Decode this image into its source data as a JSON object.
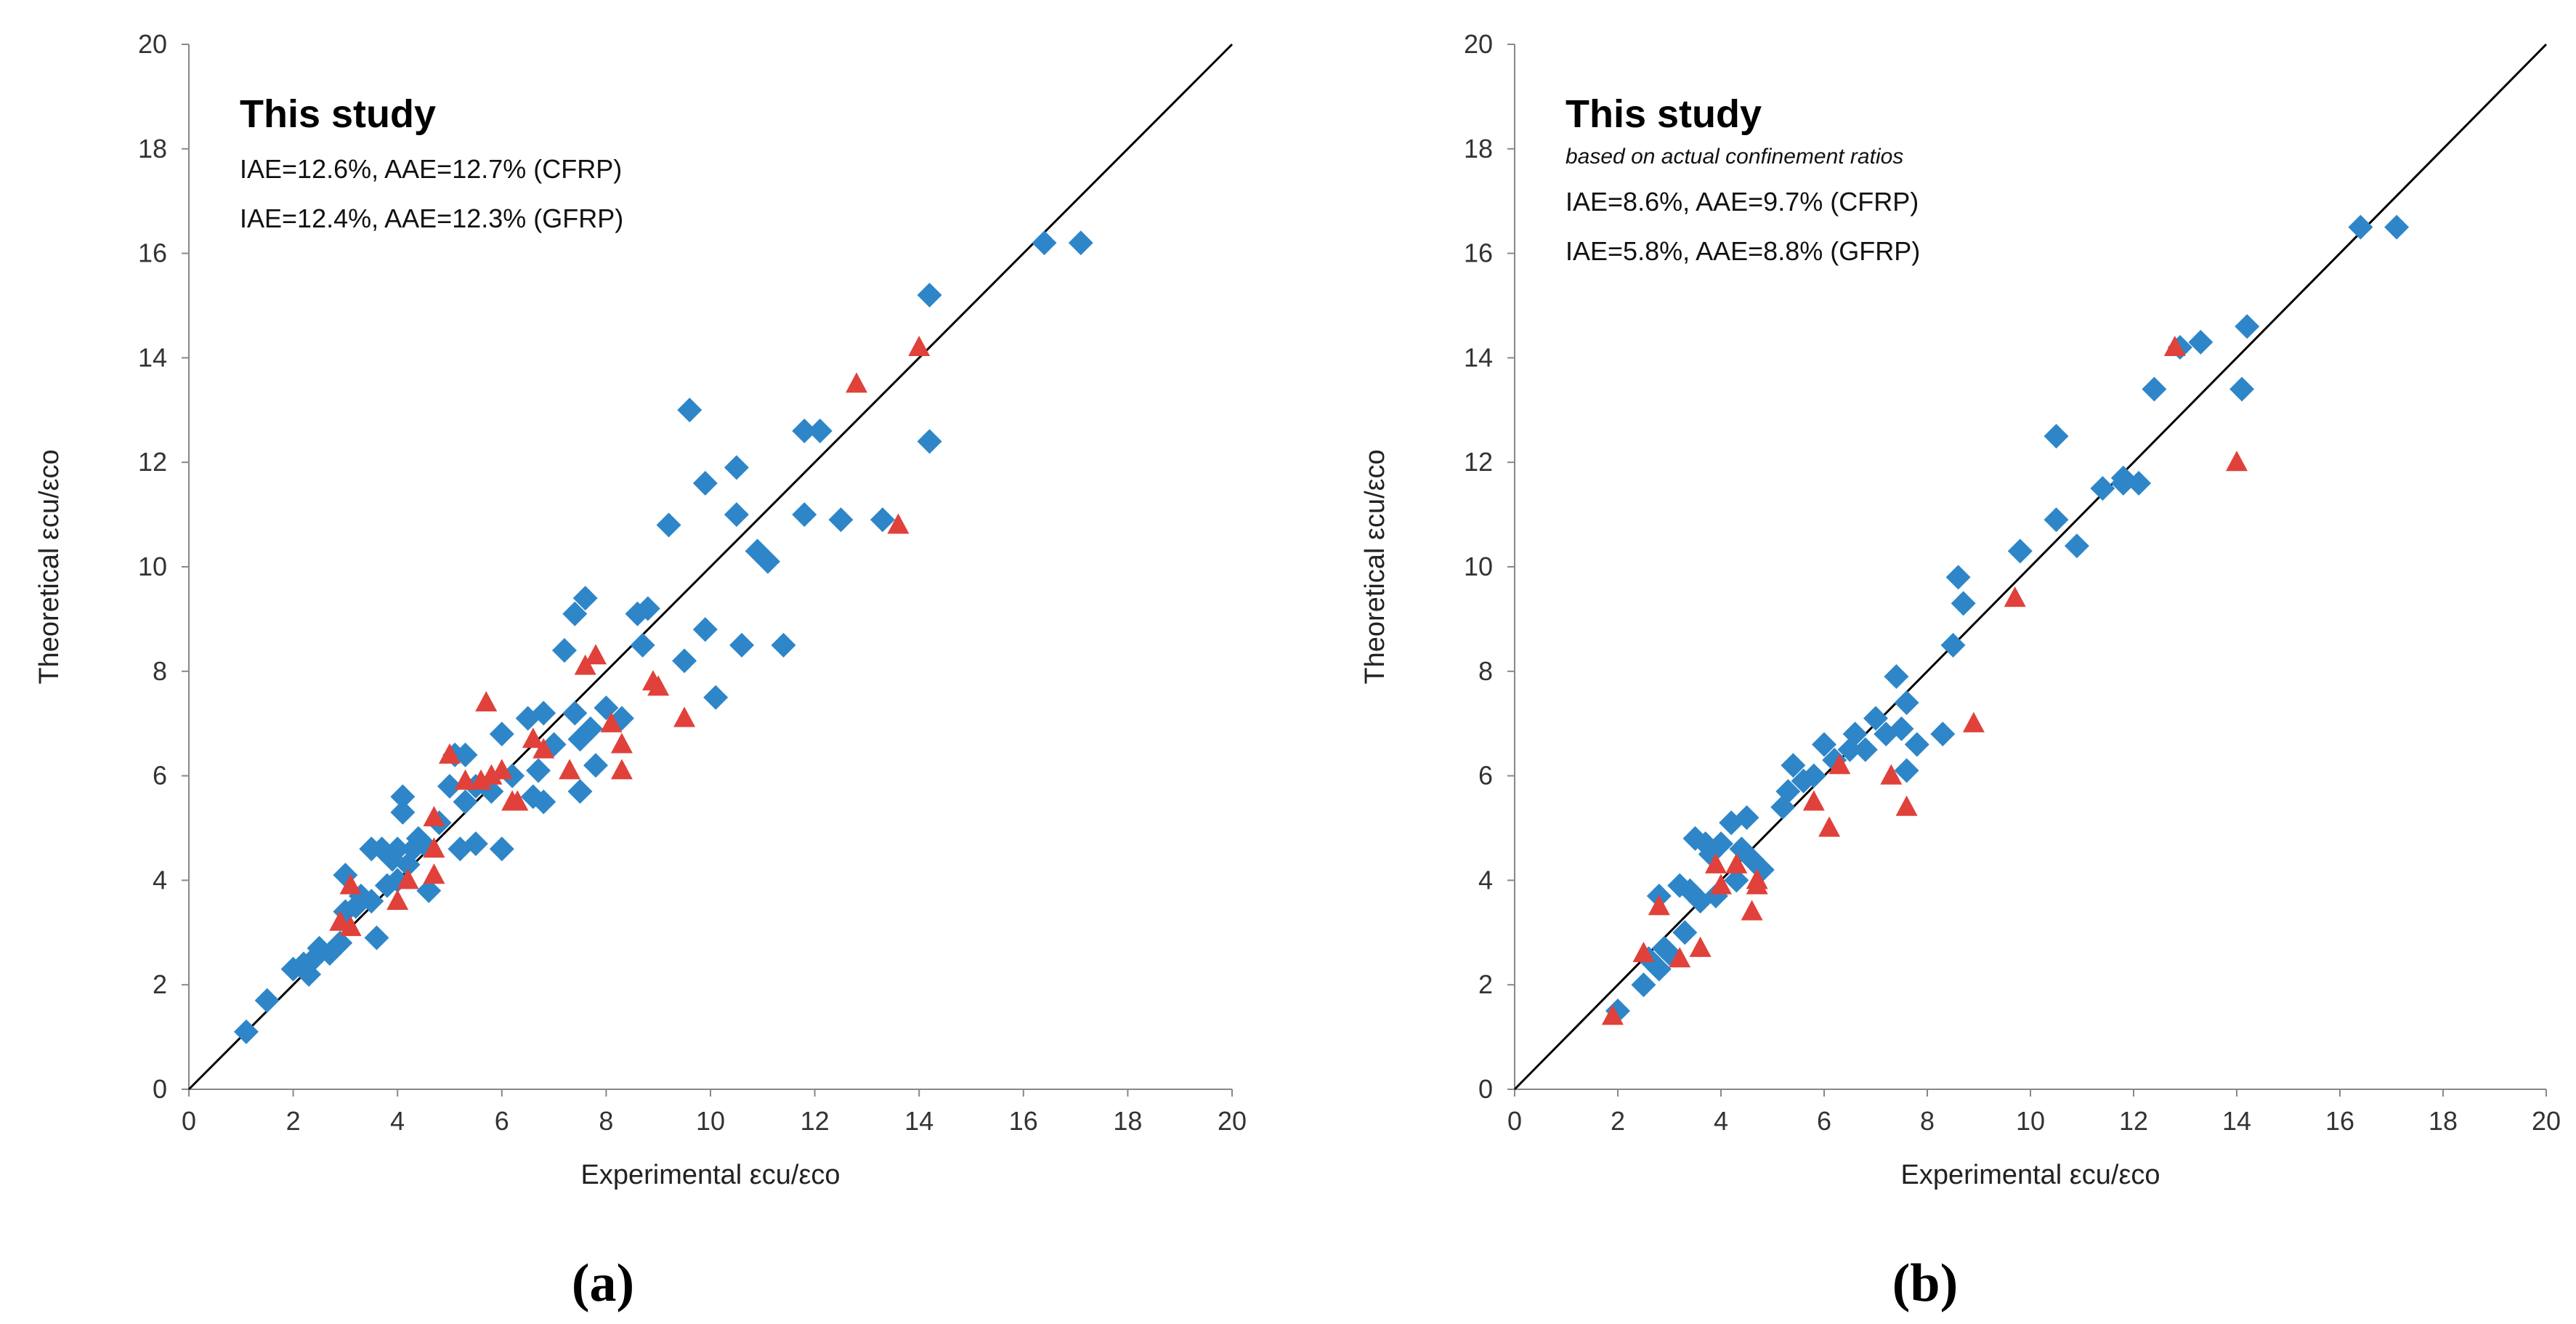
{
  "chart_data": [
    {
      "type": "scatter",
      "panel_label": "(a)",
      "xlabel": "Experimental  εcu/εco",
      "ylabel": "Theoretical  εcu/εco",
      "xlim": [
        0,
        20
      ],
      "ylim": [
        0,
        20
      ],
      "xticks": [
        0,
        2,
        4,
        6,
        8,
        10,
        12,
        14,
        16,
        18,
        20
      ],
      "yticks": [
        0,
        2,
        4,
        6,
        8,
        10,
        12,
        14,
        16,
        18,
        20
      ],
      "grid": false,
      "reference_line": "y = x",
      "annotation": {
        "title": "This study",
        "subtitle": "",
        "lines": [
          "IAE=12.6%, AAE=12.7% (CFRP)",
          "IAE=12.4%,  AAE=12.3% (GFRP)"
        ]
      },
      "series": [
        {
          "name": "CFRP",
          "marker": "diamond",
          "color": "#2E86C8",
          "points": [
            [
              1.1,
              1.1
            ],
            [
              1.5,
              1.7
            ],
            [
              2,
              2.3
            ],
            [
              2.2,
              2.4
            ],
            [
              2.4,
              2.5
            ],
            [
              2.5,
              2.7
            ],
            [
              2.3,
              2.2
            ],
            [
              2.7,
              2.6
            ],
            [
              2.9,
              2.8
            ],
            [
              3,
              3.4
            ],
            [
              3,
              4.1
            ],
            [
              3.2,
              3.5
            ],
            [
              3.3,
              3.7
            ],
            [
              3.5,
              3.6
            ],
            [
              3.5,
              4.6
            ],
            [
              3.6,
              2.9
            ],
            [
              3.7,
              4.6
            ],
            [
              3.8,
              3.9
            ],
            [
              3.9,
              4.4
            ],
            [
              4,
              4.6
            ],
            [
              4,
              4.0
            ],
            [
              4.1,
              5.3
            ],
            [
              4.1,
              5.6
            ],
            [
              4.2,
              4.3
            ],
            [
              4.3,
              4.6
            ],
            [
              4.4,
              4.8
            ],
            [
              4.5,
              4.7
            ],
            [
              4.6,
              3.8
            ],
            [
              4.8,
              5.1
            ],
            [
              5,
              5.8
            ],
            [
              5.1,
              6.4
            ],
            [
              5.2,
              4.6
            ],
            [
              5.3,
              6.4
            ],
            [
              5.3,
              5.5
            ],
            [
              5.5,
              4.7
            ],
            [
              5.5,
              5.8
            ],
            [
              5.8,
              5.7
            ],
            [
              6,
              4.6
            ],
            [
              6,
              6.8
            ],
            [
              6.2,
              6
            ],
            [
              6.5,
              7.1
            ],
            [
              6.6,
              5.6
            ],
            [
              6.7,
              6.1
            ],
            [
              6.8,
              7.2
            ],
            [
              6.8,
              5.5
            ],
            [
              7,
              6.6
            ],
            [
              7.2,
              8.4
            ],
            [
              7.4,
              9.1
            ],
            [
              7.4,
              7.2
            ],
            [
              7.5,
              6.7
            ],
            [
              7.5,
              5.7
            ],
            [
              7.6,
              9.4
            ],
            [
              7.7,
              6.9
            ],
            [
              7.8,
              6.2
            ],
            [
              8,
              7.3
            ],
            [
              8.3,
              7.1
            ],
            [
              8.6,
              9.1
            ],
            [
              8.7,
              8.5
            ],
            [
              8.8,
              9.2
            ],
            [
              9.2,
              10.8
            ],
            [
              9.5,
              8.2
            ],
            [
              9.6,
              13
            ],
            [
              9.9,
              8.8
            ],
            [
              9.9,
              11.6
            ],
            [
              10.1,
              7.5
            ],
            [
              10.5,
              11.9
            ],
            [
              10.5,
              11
            ],
            [
              10.6,
              8.5
            ],
            [
              10.9,
              10.3
            ],
            [
              11.1,
              10.1
            ],
            [
              11.4,
              8.5
            ],
            [
              11.8,
              11
            ],
            [
              11.8,
              12.6
            ],
            [
              12.1,
              12.6
            ],
            [
              12.5,
              10.9
            ],
            [
              13.3,
              10.9
            ],
            [
              14.2,
              12.4
            ],
            [
              14.2,
              15.2
            ],
            [
              16.4,
              16.2
            ],
            [
              17.1,
              16.2
            ]
          ]
        },
        {
          "name": "GFRP",
          "marker": "triangle",
          "color": "#E0413A",
          "points": [
            [
              2.9,
              3.2
            ],
            [
              3.1,
              3.1
            ],
            [
              3.1,
              3.9
            ],
            [
              4,
              3.6
            ],
            [
              4.2,
              4
            ],
            [
              4.7,
              4.1
            ],
            [
              4.7,
              5.2
            ],
            [
              4.7,
              4.6
            ],
            [
              5,
              6.4
            ],
            [
              5.3,
              5.9
            ],
            [
              5.6,
              5.9
            ],
            [
              5.7,
              7.4
            ],
            [
              5.8,
              6
            ],
            [
              6,
              6.1
            ],
            [
              6.2,
              5.5
            ],
            [
              6.3,
              5.5
            ],
            [
              6.6,
              6.7
            ],
            [
              6.8,
              6.5
            ],
            [
              7.3,
              6.1
            ],
            [
              7.6,
              8.1
            ],
            [
              7.8,
              8.3
            ],
            [
              8.1,
              7
            ],
            [
              8.3,
              6.6
            ],
            [
              8.3,
              6.1
            ],
            [
              8.9,
              7.8
            ],
            [
              9,
              7.7
            ],
            [
              9.5,
              7.1
            ],
            [
              12.8,
              13.5
            ],
            [
              13.6,
              10.8
            ],
            [
              14,
              14.2
            ]
          ]
        }
      ]
    },
    {
      "type": "scatter",
      "panel_label": "(b)",
      "xlabel": "Experimental  εcu/εco",
      "ylabel": "Theoretical  εcu/εco",
      "xlim": [
        0,
        20
      ],
      "ylim": [
        0,
        20
      ],
      "xticks": [
        0,
        2,
        4,
        6,
        8,
        10,
        12,
        14,
        16,
        18,
        20
      ],
      "yticks": [
        0,
        2,
        4,
        6,
        8,
        10,
        12,
        14,
        16,
        18,
        20
      ],
      "grid": false,
      "reference_line": "y = x",
      "annotation": {
        "title": "This study",
        "subtitle": "based on actual confinement ratios",
        "lines": [
          "IAE=8.6%, AAE=9.7% (CFRP)",
          "IAE=5.8%,  AAE=8.8% (GFRP)"
        ]
      },
      "series": [
        {
          "name": "CFRP",
          "marker": "diamond",
          "color": "#2E86C8",
          "points": [
            [
              2,
              1.5
            ],
            [
              2.5,
              2
            ],
            [
              2.6,
              2.5
            ],
            [
              2.8,
              2.3
            ],
            [
              2.9,
              2.7
            ],
            [
              2.8,
              3.7
            ],
            [
              3,
              2.6
            ],
            [
              3.2,
              3.9
            ],
            [
              3.3,
              3
            ],
            [
              3.4,
              3.8
            ],
            [
              3.5,
              4.8
            ],
            [
              3.6,
              3.6
            ],
            [
              3.7,
              4.7
            ],
            [
              3.8,
              4.5
            ],
            [
              3.9,
              3.7
            ],
            [
              4,
              4.7
            ],
            [
              4.2,
              5.1
            ],
            [
              4.3,
              4
            ],
            [
              4.4,
              4.6
            ],
            [
              4.5,
              5.2
            ],
            [
              4.6,
              4.4
            ],
            [
              4.8,
              4.2
            ],
            [
              5.2,
              5.4
            ],
            [
              5.3,
              5.7
            ],
            [
              5.4,
              6.2
            ],
            [
              5.6,
              5.9
            ],
            [
              5.8,
              6
            ],
            [
              6,
              6.6
            ],
            [
              6.2,
              6.3
            ],
            [
              6.5,
              6.5
            ],
            [
              6.6,
              6.8
            ],
            [
              6.8,
              6.5
            ],
            [
              7,
              7.1
            ],
            [
              7.2,
              6.8
            ],
            [
              7.4,
              7.9
            ],
            [
              7.5,
              6.9
            ],
            [
              7.6,
              6.1
            ],
            [
              7.6,
              7.4
            ],
            [
              7.8,
              6.6
            ],
            [
              8.3,
              6.8
            ],
            [
              8.5,
              8.5
            ],
            [
              8.6,
              9.8
            ],
            [
              8.7,
              9.3
            ],
            [
              9.8,
              10.3
            ],
            [
              10.5,
              10.9
            ],
            [
              10.5,
              12.5
            ],
            [
              10.9,
              10.4
            ],
            [
              11.4,
              11.5
            ],
            [
              11.8,
              11.7
            ],
            [
              11.8,
              11.6
            ],
            [
              12.1,
              11.6
            ],
            [
              12.4,
              13.4
            ],
            [
              12.9,
              14.2
            ],
            [
              13.3,
              14.3
            ],
            [
              14.1,
              13.4
            ],
            [
              14.2,
              14.6
            ],
            [
              16.4,
              16.5
            ],
            [
              17.1,
              16.5
            ]
          ]
        },
        {
          "name": "GFRP",
          "marker": "triangle",
          "color": "#E0413A",
          "points": [
            [
              1.9,
              1.4
            ],
            [
              2.5,
              2.6
            ],
            [
              2.8,
              3.5
            ],
            [
              3.2,
              2.5
            ],
            [
              3.6,
              2.7
            ],
            [
              3.9,
              4.3
            ],
            [
              4,
              3.9
            ],
            [
              4.3,
              4.3
            ],
            [
              4.6,
              3.4
            ],
            [
              4.7,
              4
            ],
            [
              4.7,
              3.9
            ],
            [
              5.8,
              5.5
            ],
            [
              6.1,
              5
            ],
            [
              6.3,
              6.2
            ],
            [
              7.3,
              6
            ],
            [
              7.6,
              5.4
            ],
            [
              8.9,
              7
            ],
            [
              9.7,
              9.4
            ],
            [
              12.8,
              14.2
            ],
            [
              14,
              12
            ]
          ]
        }
      ]
    }
  ]
}
